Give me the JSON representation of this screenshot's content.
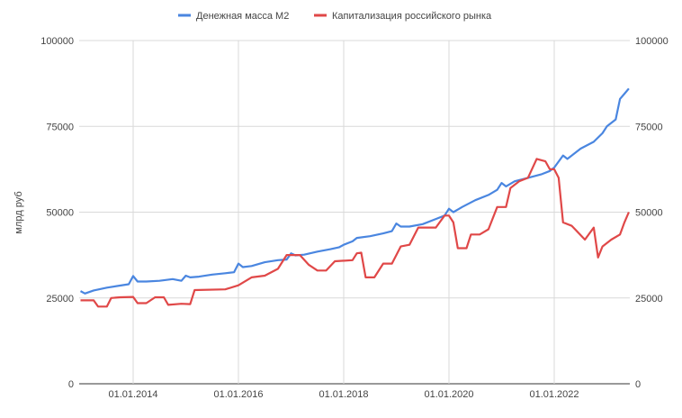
{
  "chart_data": {
    "type": "line",
    "title": "",
    "xlabel": "",
    "ylabel": "млрд руб",
    "ylim": [
      0,
      100000
    ],
    "y_ticks": [
      "0",
      "25000",
      "50000",
      "75000",
      "100000"
    ],
    "y_ticks_right": [
      "0",
      "25000",
      "50000",
      "75000",
      "100000"
    ],
    "x_ticks": [
      "01.01.2014",
      "01.01.2016",
      "01.01.2018",
      "01.01.2020",
      "01.01.2022"
    ],
    "x_range": [
      "2013-01",
      "2023-06"
    ],
    "grid": true,
    "legend_position": "top",
    "series": [
      {
        "name": "Денежная масса М2",
        "color": "#4a86e0",
        "points": [
          [
            "2013-01",
            27000
          ],
          [
            "2013-02",
            26300
          ],
          [
            "2013-04",
            27200
          ],
          [
            "2013-07",
            28000
          ],
          [
            "2013-10",
            28600
          ],
          [
            "2013-12",
            29000
          ],
          [
            "2014-01",
            31400
          ],
          [
            "2014-02",
            29800
          ],
          [
            "2014-04",
            29800
          ],
          [
            "2014-07",
            30000
          ],
          [
            "2014-10",
            30500
          ],
          [
            "2014-12",
            30000
          ],
          [
            "2015-01",
            31500
          ],
          [
            "2015-02",
            31000
          ],
          [
            "2015-04",
            31200
          ],
          [
            "2015-07",
            31800
          ],
          [
            "2015-10",
            32200
          ],
          [
            "2015-12",
            32500
          ],
          [
            "2016-01",
            35000
          ],
          [
            "2016-02",
            34000
          ],
          [
            "2016-04",
            34300
          ],
          [
            "2016-07",
            35400
          ],
          [
            "2016-10",
            36000
          ],
          [
            "2016-12",
            36200
          ],
          [
            "2017-01",
            38000
          ],
          [
            "2017-02",
            37400
          ],
          [
            "2017-04",
            37600
          ],
          [
            "2017-07",
            38500
          ],
          [
            "2017-10",
            39200
          ],
          [
            "2017-12",
            39800
          ],
          [
            "2018-01",
            40500
          ],
          [
            "2018-03",
            41500
          ],
          [
            "2018-04",
            42500
          ],
          [
            "2018-07",
            43000
          ],
          [
            "2018-10",
            43800
          ],
          [
            "2018-12",
            44500
          ],
          [
            "2019-01",
            46700
          ],
          [
            "2019-02",
            45800
          ],
          [
            "2019-04",
            45800
          ],
          [
            "2019-07",
            46500
          ],
          [
            "2019-10",
            48000
          ],
          [
            "2019-12",
            49000
          ],
          [
            "2020-01",
            51000
          ],
          [
            "2020-02",
            50000
          ],
          [
            "2020-04",
            51500
          ],
          [
            "2020-07",
            53500
          ],
          [
            "2020-10",
            55000
          ],
          [
            "2020-12",
            56500
          ],
          [
            "2021-01",
            58500
          ],
          [
            "2021-02",
            57500
          ],
          [
            "2021-04",
            59000
          ],
          [
            "2021-07",
            60000
          ],
          [
            "2021-10",
            61000
          ],
          [
            "2021-12",
            62000
          ],
          [
            "2022-01",
            63000
          ],
          [
            "2022-03",
            66500
          ],
          [
            "2022-04",
            65500
          ],
          [
            "2022-07",
            68500
          ],
          [
            "2022-10",
            70500
          ],
          [
            "2022-12",
            73000
          ],
          [
            "2023-01",
            75000
          ],
          [
            "2023-03",
            77000
          ],
          [
            "2023-04",
            83000
          ],
          [
            "2023-05",
            84500
          ],
          [
            "2023-06",
            86000
          ]
        ]
      },
      {
        "name": "Капитализация российского рынка",
        "color": "#e04848",
        "points": [
          [
            "2013-01",
            24300
          ],
          [
            "2013-04",
            24300
          ],
          [
            "2013-05",
            22500
          ],
          [
            "2013-07",
            22500
          ],
          [
            "2013-08",
            25000
          ],
          [
            "2013-10",
            25200
          ],
          [
            "2014-01",
            25300
          ],
          [
            "2014-02",
            23500
          ],
          [
            "2014-04",
            23500
          ],
          [
            "2014-06",
            25200
          ],
          [
            "2014-08",
            25200
          ],
          [
            "2014-09",
            23000
          ],
          [
            "2014-12",
            23300
          ],
          [
            "2015-02",
            23200
          ],
          [
            "2015-03",
            27300
          ],
          [
            "2015-10",
            27500
          ],
          [
            "2016-01",
            28700
          ],
          [
            "2016-04",
            31000
          ],
          [
            "2016-07",
            31500
          ],
          [
            "2016-10",
            33500
          ],
          [
            "2016-12",
            37500
          ],
          [
            "2017-03",
            37500
          ],
          [
            "2017-05",
            34700
          ],
          [
            "2017-07",
            33000
          ],
          [
            "2017-09",
            33000
          ],
          [
            "2017-11",
            35700
          ],
          [
            "2018-03",
            36000
          ],
          [
            "2018-04",
            38000
          ],
          [
            "2018-05",
            38200
          ],
          [
            "2018-06",
            31000
          ],
          [
            "2018-08",
            31000
          ],
          [
            "2018-10",
            35000
          ],
          [
            "2018-12",
            35000
          ],
          [
            "2019-02",
            40000
          ],
          [
            "2019-04",
            40500
          ],
          [
            "2019-06",
            45500
          ],
          [
            "2019-10",
            45500
          ],
          [
            "2019-12",
            49000
          ],
          [
            "2020-01",
            49000
          ],
          [
            "2020-02",
            47000
          ],
          [
            "2020-03",
            39500
          ],
          [
            "2020-05",
            39500
          ],
          [
            "2020-06",
            43500
          ],
          [
            "2020-08",
            43500
          ],
          [
            "2020-10",
            45000
          ],
          [
            "2020-12",
            51500
          ],
          [
            "2021-02",
            51500
          ],
          [
            "2021-03",
            57000
          ],
          [
            "2021-05",
            59000
          ],
          [
            "2021-07",
            60000
          ],
          [
            "2021-09",
            65500
          ],
          [
            "2021-11",
            64800
          ],
          [
            "2021-12",
            62500
          ],
          [
            "2022-01",
            62500
          ],
          [
            "2022-02",
            60000
          ],
          [
            "2022-03",
            47000
          ],
          [
            "2022-05",
            46000
          ],
          [
            "2022-08",
            42000
          ],
          [
            "2022-10",
            45500
          ],
          [
            "2022-11",
            36800
          ],
          [
            "2022-12",
            40000
          ],
          [
            "2023-02",
            42000
          ],
          [
            "2023-04",
            43500
          ],
          [
            "2023-05",
            47000
          ],
          [
            "2023-06",
            50000
          ]
        ]
      }
    ]
  }
}
